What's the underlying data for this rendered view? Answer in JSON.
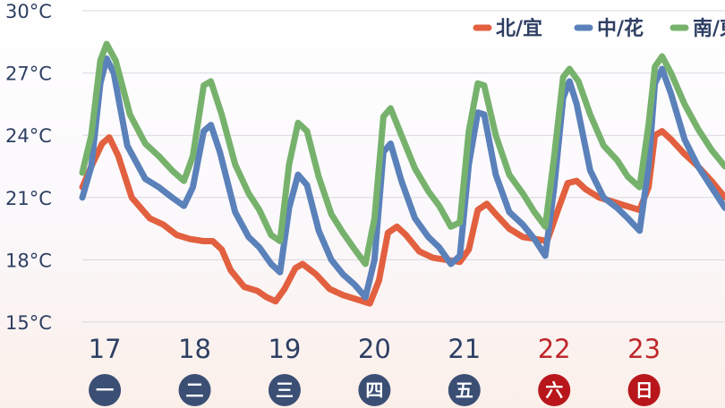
{
  "chart_data": {
    "type": "line",
    "title": "",
    "xlabel": "",
    "ylabel": "",
    "ylim": [
      15,
      30
    ],
    "y_ticks": [
      "15°C",
      "18°C",
      "21°C",
      "24°C",
      "27°C",
      "30°C"
    ],
    "grid": true,
    "legend_position": "top-right",
    "days": [
      {
        "date": "17",
        "weekday": "一",
        "weekend": false
      },
      {
        "date": "18",
        "weekday": "二",
        "weekend": false
      },
      {
        "date": "19",
        "weekday": "三",
        "weekend": false
      },
      {
        "date": "20",
        "weekday": "四",
        "weekend": false
      },
      {
        "date": "21",
        "weekday": "五",
        "weekend": false
      },
      {
        "date": "22",
        "weekday": "六",
        "weekend": true
      },
      {
        "date": "23",
        "weekday": "日",
        "weekend": true
      }
    ],
    "x_domain": [
      16.75,
      23.9
    ],
    "series": [
      {
        "name": "北/宜",
        "color": "#e2603f",
        "points": [
          [
            16.75,
            21.5
          ],
          [
            16.85,
            22.5
          ],
          [
            16.97,
            23.6
          ],
          [
            17.05,
            23.9
          ],
          [
            17.15,
            23.0
          ],
          [
            17.3,
            21.0
          ],
          [
            17.5,
            20.0
          ],
          [
            17.65,
            19.7
          ],
          [
            17.8,
            19.2
          ],
          [
            17.95,
            19.0
          ],
          [
            18.1,
            18.9
          ],
          [
            18.2,
            18.9
          ],
          [
            18.3,
            18.5
          ],
          [
            18.4,
            17.5
          ],
          [
            18.55,
            16.7
          ],
          [
            18.7,
            16.5
          ],
          [
            18.8,
            16.2
          ],
          [
            18.9,
            16.0
          ],
          [
            19.0,
            16.6
          ],
          [
            19.12,
            17.6
          ],
          [
            19.2,
            17.8
          ],
          [
            19.35,
            17.3
          ],
          [
            19.5,
            16.6
          ],
          [
            19.65,
            16.3
          ],
          [
            19.8,
            16.1
          ],
          [
            19.95,
            15.9
          ],
          [
            20.05,
            17.0
          ],
          [
            20.15,
            19.3
          ],
          [
            20.25,
            19.6
          ],
          [
            20.35,
            19.2
          ],
          [
            20.5,
            18.4
          ],
          [
            20.65,
            18.1
          ],
          [
            20.8,
            18.0
          ],
          [
            20.95,
            17.9
          ],
          [
            21.05,
            18.5
          ],
          [
            21.15,
            20.4
          ],
          [
            21.25,
            20.7
          ],
          [
            21.35,
            20.2
          ],
          [
            21.5,
            19.5
          ],
          [
            21.65,
            19.1
          ],
          [
            21.8,
            19.0
          ],
          [
            21.92,
            18.9
          ],
          [
            22.05,
            20.5
          ],
          [
            22.15,
            21.7
          ],
          [
            22.25,
            21.8
          ],
          [
            22.35,
            21.4
          ],
          [
            22.5,
            21.0
          ],
          [
            22.65,
            20.8
          ],
          [
            22.8,
            20.6
          ],
          [
            22.95,
            20.4
          ],
          [
            23.05,
            21.5
          ],
          [
            23.12,
            24.0
          ],
          [
            23.2,
            24.2
          ],
          [
            23.3,
            23.8
          ],
          [
            23.45,
            23.1
          ],
          [
            23.6,
            22.5
          ],
          [
            23.75,
            21.8
          ],
          [
            23.9,
            21.0
          ]
        ]
      },
      {
        "name": "中/花",
        "color": "#5a81ba",
        "points": [
          [
            16.75,
            21.0
          ],
          [
            16.85,
            22.5
          ],
          [
            16.95,
            26.5
          ],
          [
            17.02,
            27.7
          ],
          [
            17.1,
            27.0
          ],
          [
            17.25,
            23.5
          ],
          [
            17.45,
            21.9
          ],
          [
            17.6,
            21.5
          ],
          [
            17.75,
            21.0
          ],
          [
            17.88,
            20.6
          ],
          [
            17.98,
            21.5
          ],
          [
            18.1,
            24.2
          ],
          [
            18.18,
            24.5
          ],
          [
            18.28,
            23.2
          ],
          [
            18.45,
            20.3
          ],
          [
            18.6,
            19.1
          ],
          [
            18.72,
            18.6
          ],
          [
            18.85,
            17.8
          ],
          [
            18.95,
            17.4
          ],
          [
            19.05,
            20.5
          ],
          [
            19.15,
            22.1
          ],
          [
            19.25,
            21.6
          ],
          [
            19.38,
            19.4
          ],
          [
            19.52,
            18.0
          ],
          [
            19.65,
            17.3
          ],
          [
            19.78,
            16.8
          ],
          [
            19.9,
            16.2
          ],
          [
            20.0,
            18.0
          ],
          [
            20.1,
            23.2
          ],
          [
            20.18,
            23.6
          ],
          [
            20.3,
            21.8
          ],
          [
            20.45,
            20.0
          ],
          [
            20.6,
            19.1
          ],
          [
            20.72,
            18.6
          ],
          [
            20.85,
            17.8
          ],
          [
            20.95,
            18.2
          ],
          [
            21.05,
            22.6
          ],
          [
            21.15,
            25.1
          ],
          [
            21.22,
            25.0
          ],
          [
            21.35,
            22.1
          ],
          [
            21.5,
            20.3
          ],
          [
            21.65,
            19.7
          ],
          [
            21.78,
            19.0
          ],
          [
            21.9,
            18.2
          ],
          [
            22.0,
            21.5
          ],
          [
            22.1,
            25.8
          ],
          [
            22.17,
            26.6
          ],
          [
            22.25,
            25.5
          ],
          [
            22.4,
            22.3
          ],
          [
            22.55,
            21.0
          ],
          [
            22.7,
            20.5
          ],
          [
            22.82,
            20.0
          ],
          [
            22.95,
            19.4
          ],
          [
            23.05,
            22.5
          ],
          [
            23.12,
            26.5
          ],
          [
            23.2,
            27.2
          ],
          [
            23.3,
            26.0
          ],
          [
            23.45,
            23.8
          ],
          [
            23.6,
            22.5
          ],
          [
            23.75,
            21.5
          ],
          [
            23.9,
            20.5
          ]
        ]
      },
      {
        "name": "南/東",
        "color": "#77b26d",
        "points": [
          [
            16.75,
            22.2
          ],
          [
            16.85,
            24.0
          ],
          [
            16.95,
            27.6
          ],
          [
            17.02,
            28.4
          ],
          [
            17.12,
            27.6
          ],
          [
            17.28,
            25.0
          ],
          [
            17.45,
            23.6
          ],
          [
            17.6,
            23.0
          ],
          [
            17.75,
            22.3
          ],
          [
            17.88,
            21.8
          ],
          [
            17.98,
            23.0
          ],
          [
            18.1,
            26.4
          ],
          [
            18.18,
            26.6
          ],
          [
            18.3,
            25.0
          ],
          [
            18.45,
            22.6
          ],
          [
            18.6,
            21.2
          ],
          [
            18.72,
            20.4
          ],
          [
            18.85,
            19.2
          ],
          [
            18.95,
            18.9
          ],
          [
            19.05,
            22.6
          ],
          [
            19.15,
            24.6
          ],
          [
            19.25,
            24.2
          ],
          [
            19.38,
            22.0
          ],
          [
            19.52,
            20.2
          ],
          [
            19.65,
            19.3
          ],
          [
            19.78,
            18.5
          ],
          [
            19.9,
            17.8
          ],
          [
            20.0,
            20.0
          ],
          [
            20.1,
            24.9
          ],
          [
            20.18,
            25.3
          ],
          [
            20.3,
            24.0
          ],
          [
            20.45,
            22.4
          ],
          [
            20.6,
            21.3
          ],
          [
            20.72,
            20.6
          ],
          [
            20.85,
            19.6
          ],
          [
            20.95,
            19.8
          ],
          [
            21.05,
            24.2
          ],
          [
            21.15,
            26.5
          ],
          [
            21.22,
            26.4
          ],
          [
            21.35,
            24.0
          ],
          [
            21.5,
            22.1
          ],
          [
            21.65,
            21.2
          ],
          [
            21.78,
            20.3
          ],
          [
            21.9,
            19.6
          ],
          [
            22.0,
            23.0
          ],
          [
            22.1,
            26.8
          ],
          [
            22.17,
            27.2
          ],
          [
            22.27,
            26.6
          ],
          [
            22.4,
            25.0
          ],
          [
            22.55,
            23.5
          ],
          [
            22.7,
            22.8
          ],
          [
            22.82,
            22.0
          ],
          [
            22.95,
            21.5
          ],
          [
            23.05,
            24.5
          ],
          [
            23.12,
            27.3
          ],
          [
            23.2,
            27.8
          ],
          [
            23.3,
            27.0
          ],
          [
            23.45,
            25.5
          ],
          [
            23.6,
            24.3
          ],
          [
            23.75,
            23.3
          ],
          [
            23.9,
            22.5
          ]
        ]
      }
    ]
  }
}
